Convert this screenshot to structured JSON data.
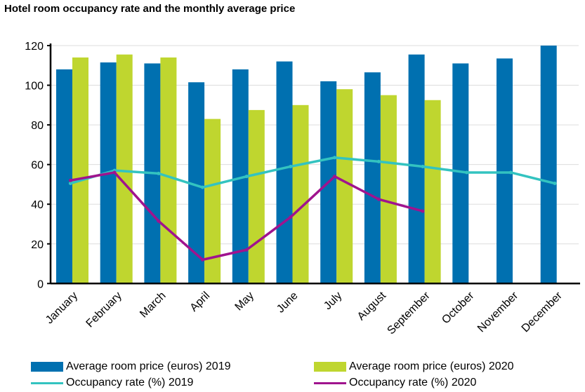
{
  "chart_data": {
    "type": "bar",
    "title": "Hotel room occupancy rate and the monthly average price",
    "categories": [
      "January",
      "February",
      "March",
      "April",
      "May",
      "June",
      "July",
      "August",
      "September",
      "October",
      "November",
      "December"
    ],
    "ylim": [
      0,
      120
    ],
    "yticks": [
      0,
      20,
      40,
      60,
      80,
      100,
      120
    ],
    "grid": true,
    "legend_position": "bottom",
    "series": [
      {
        "name": "Average room price (euros) 2019",
        "kind": "bar",
        "color": "#0070b0",
        "values": [
          108,
          111.5,
          111,
          101.5,
          108,
          112,
          102,
          106.5,
          115.5,
          111,
          113.5,
          120
        ]
      },
      {
        "name": "Average room price (euros) 2020",
        "kind": "bar",
        "color": "#bfd62f",
        "values": [
          114,
          115.5,
          114,
          83,
          87.5,
          90,
          98,
          95,
          92.5,
          null,
          null,
          null
        ]
      },
      {
        "name": "Occupancy rate (%) 2019",
        "kind": "line",
        "color": "#33c3c0",
        "values": [
          50.5,
          57,
          55.5,
          48.5,
          54,
          59,
          63.5,
          61.5,
          59,
          56,
          56,
          50.5
        ]
      },
      {
        "name": "Occupancy rate (%) 2020",
        "kind": "line",
        "color": "#a0138e",
        "values": [
          52,
          56,
          31.5,
          12,
          17,
          33.5,
          54,
          42.5,
          36.5,
          null,
          null,
          null
        ]
      }
    ]
  }
}
